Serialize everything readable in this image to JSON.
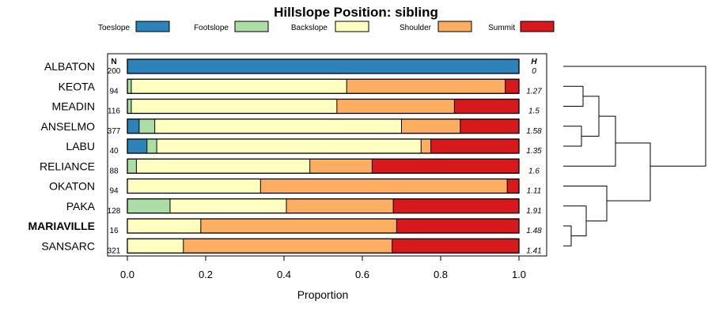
{
  "chart_data": {
    "type": "bar",
    "title": "Hillslope Position: sibling",
    "xlabel": "Proportion",
    "xlim": [
      0,
      1
    ],
    "x_ticks": [
      "0.0",
      "0.2",
      "0.4",
      "0.6",
      "0.8",
      "1.0"
    ],
    "legend_position": "top",
    "stacked": true,
    "horizontal": true,
    "legend": [
      {
        "name": "Toeslope",
        "color": "#2B83BA"
      },
      {
        "name": "Footslope",
        "color": "#ABDDA4"
      },
      {
        "name": "Backslope",
        "color": "#FFFFBF"
      },
      {
        "name": "Shoulder",
        "color": "#FDAE61"
      },
      {
        "name": "Summit",
        "color": "#D7191C"
      }
    ],
    "n_header": "N",
    "h_header": "H",
    "bold_row": "MARIAVILLE",
    "rows": [
      {
        "name": "ALBATON",
        "n": "200",
        "h": "0",
        "values": [
          1.0,
          0.0,
          0.0,
          0.0,
          0.0
        ]
      },
      {
        "name": "KEOTA",
        "n": "94",
        "h": "1.27",
        "values": [
          0.0,
          0.01,
          0.55,
          0.405,
          0.035
        ]
      },
      {
        "name": "MEADIN",
        "n": "116",
        "h": "1.5",
        "values": [
          0.0,
          0.01,
          0.525,
          0.3,
          0.165
        ]
      },
      {
        "name": "ANSELMO",
        "n": "377",
        "h": "1.58",
        "values": [
          0.03,
          0.04,
          0.63,
          0.15,
          0.15
        ]
      },
      {
        "name": "LABU",
        "n": "40",
        "h": "1.35",
        "values": [
          0.05,
          0.025,
          0.675,
          0.025,
          0.225
        ]
      },
      {
        "name": "RELIANCE",
        "n": "88",
        "h": "1.6",
        "values": [
          0.0,
          0.023,
          0.443,
          0.159,
          0.375
        ]
      },
      {
        "name": "OKATON",
        "n": "94",
        "h": "1.11",
        "values": [
          0.0,
          0.0,
          0.34,
          0.63,
          0.03
        ]
      },
      {
        "name": "PAKA",
        "n": "128",
        "h": "1.91",
        "values": [
          0.0,
          0.109,
          0.297,
          0.273,
          0.321
        ]
      },
      {
        "name": "MARIAVILLE",
        "n": "16",
        "h": "1.48",
        "values": [
          0.0,
          0.0,
          0.1875,
          0.5,
          0.3125
        ]
      },
      {
        "name": "SANSARC",
        "n": "321",
        "h": "1.41",
        "values": [
          0.0,
          0.0,
          0.143,
          0.533,
          0.324
        ]
      }
    ]
  }
}
